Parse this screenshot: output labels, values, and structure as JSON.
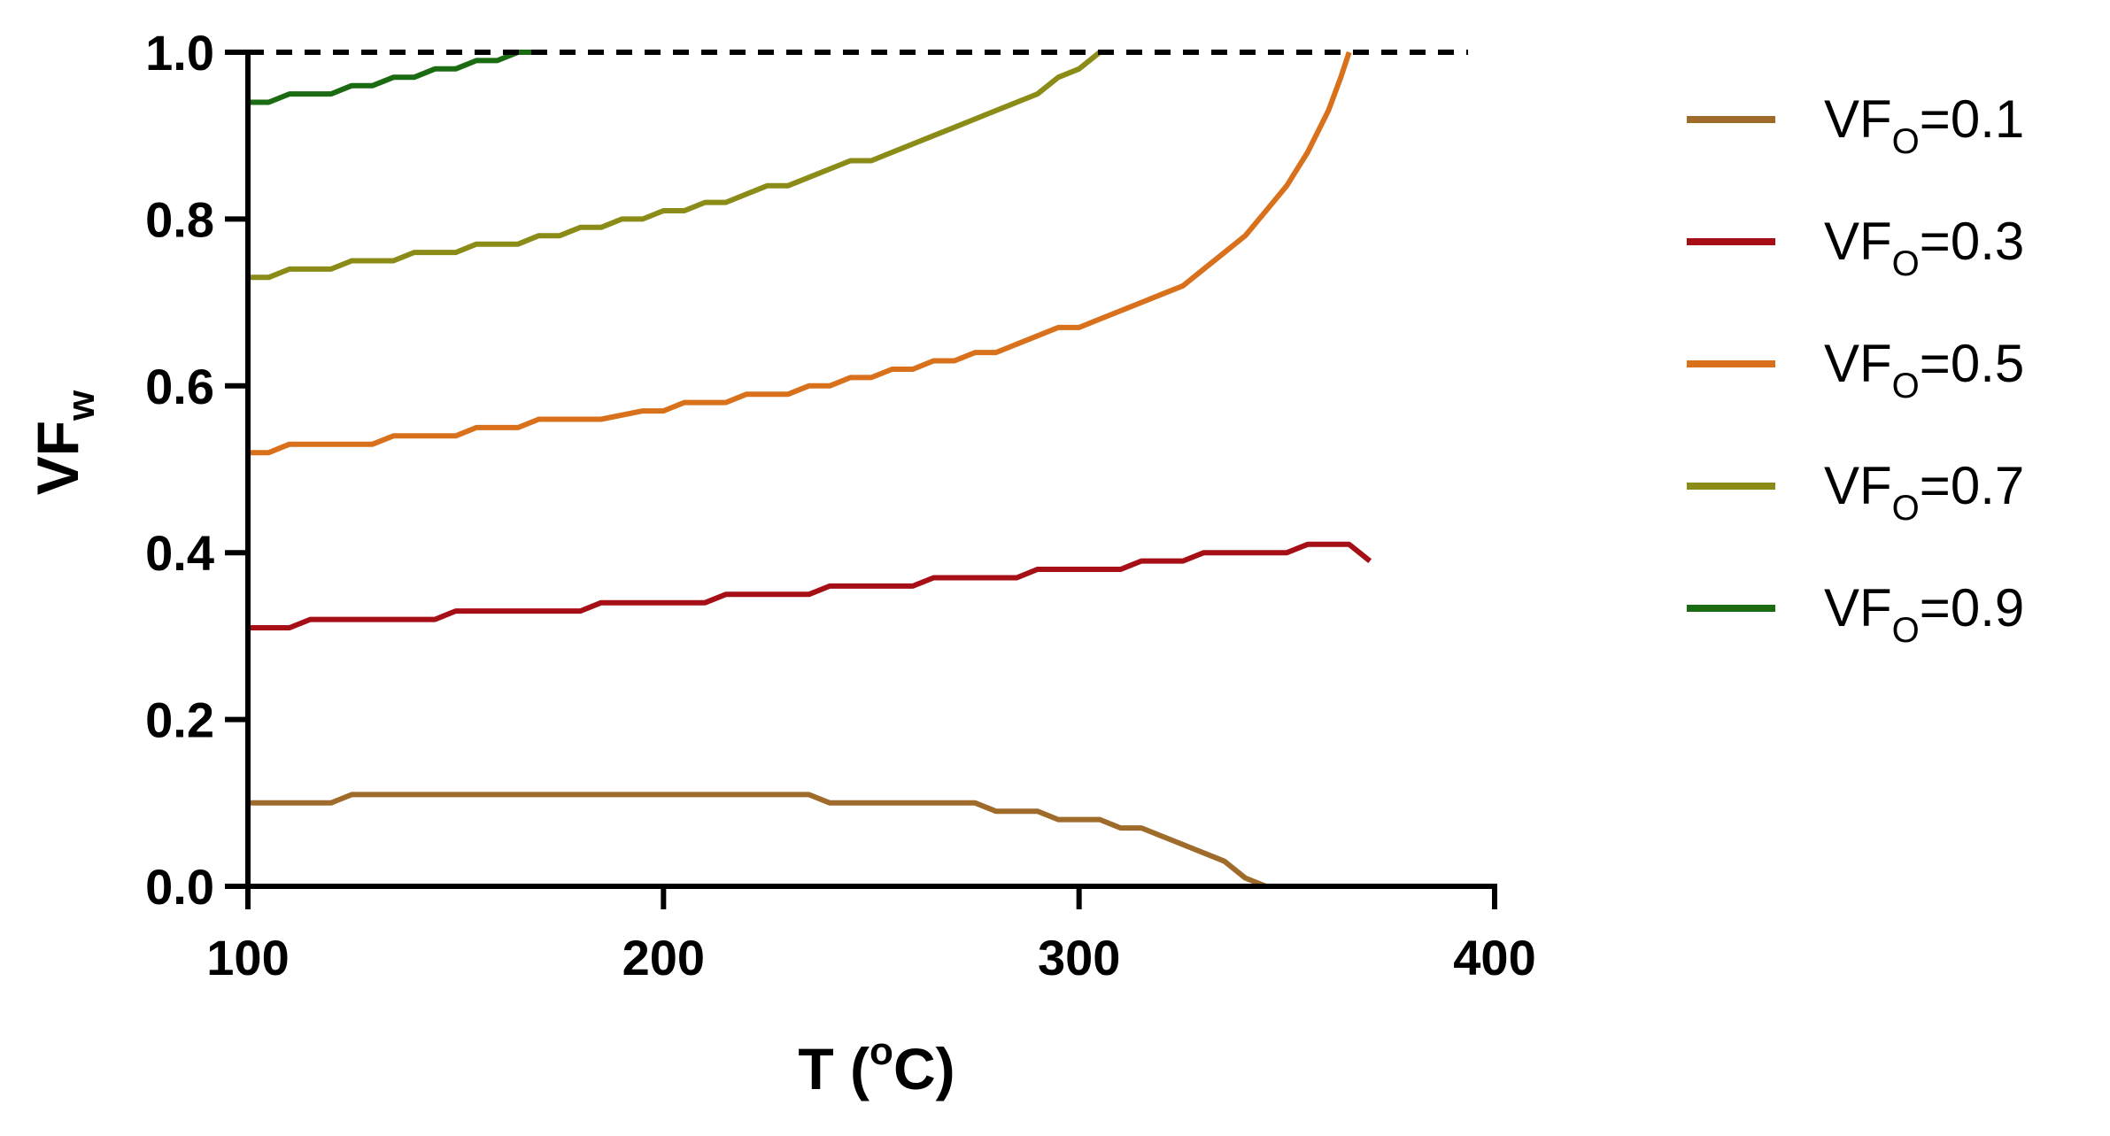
{
  "chart_data": {
    "type": "line",
    "title": "",
    "xlabel": "T (",
    "xlabel_sup": "o",
    "xlabel_tail": "C)",
    "ylabel": "VF",
    "ylabel_sub": "w",
    "xlim": [
      100,
      400
    ],
    "ylim": [
      0.0,
      1.0
    ],
    "xticks": [
      100,
      200,
      300,
      400
    ],
    "xtick_labels": [
      "100",
      "200",
      "300",
      "400"
    ],
    "yticks": [
      0.0,
      0.2,
      0.4,
      0.6,
      0.8,
      1.0
    ],
    "ytick_labels": [
      "0.0",
      "0.2",
      "0.4",
      "0.6",
      "0.8",
      "1.0"
    ],
    "grid": false,
    "legend_position": "right",
    "reference_line": {
      "y": 1.0,
      "style": "dashed",
      "color": "#000000"
    },
    "series": [
      {
        "name_prefix": "VF",
        "name_sub": "O",
        "name_suffix": "=0.1",
        "color": "#9E6B2A",
        "x": [
          100,
          105,
          110,
          115,
          120,
          125,
          135,
          145,
          155,
          165,
          175,
          185,
          195,
          205,
          215,
          225,
          235,
          240,
          245,
          255,
          265,
          275,
          280,
          285,
          290,
          295,
          300,
          305,
          310,
          315,
          320,
          325,
          330,
          335,
          340,
          345
        ],
        "y": [
          0.1,
          0.1,
          0.1,
          0.1,
          0.1,
          0.11,
          0.11,
          0.11,
          0.11,
          0.11,
          0.11,
          0.11,
          0.11,
          0.11,
          0.11,
          0.11,
          0.11,
          0.1,
          0.1,
          0.1,
          0.1,
          0.1,
          0.09,
          0.09,
          0.09,
          0.08,
          0.08,
          0.08,
          0.07,
          0.07,
          0.06,
          0.05,
          0.04,
          0.03,
          0.01,
          0.0
        ]
      },
      {
        "name_prefix": "VF",
        "name_sub": "O",
        "name_suffix": "=0.3",
        "color": "#A50F15",
        "x": [
          100,
          110,
          115,
          125,
          135,
          145,
          150,
          160,
          170,
          180,
          185,
          195,
          205,
          210,
          215,
          225,
          235,
          240,
          250,
          260,
          265,
          275,
          285,
          290,
          300,
          310,
          315,
          325,
          330,
          340,
          350,
          355,
          365,
          370
        ],
        "y": [
          0.31,
          0.31,
          0.32,
          0.32,
          0.32,
          0.32,
          0.33,
          0.33,
          0.33,
          0.33,
          0.34,
          0.34,
          0.34,
          0.34,
          0.35,
          0.35,
          0.35,
          0.36,
          0.36,
          0.36,
          0.37,
          0.37,
          0.37,
          0.38,
          0.38,
          0.38,
          0.39,
          0.39,
          0.4,
          0.4,
          0.4,
          0.41,
          0.41,
          0.39
        ]
      },
      {
        "name_prefix": "VF",
        "name_sub": "O",
        "name_suffix": "=0.5",
        "color": "#D9711C",
        "x": [
          100,
          105,
          110,
          120,
          130,
          135,
          145,
          150,
          155,
          165,
          170,
          180,
          185,
          195,
          200,
          205,
          215,
          220,
          230,
          235,
          240,
          245,
          250,
          255,
          260,
          265,
          270,
          275,
          280,
          285,
          290,
          295,
          300,
          305,
          310,
          315,
          320,
          325,
          330,
          335,
          340,
          345,
          350,
          355,
          360,
          363,
          365
        ],
        "y": [
          0.52,
          0.52,
          0.53,
          0.53,
          0.53,
          0.54,
          0.54,
          0.54,
          0.55,
          0.55,
          0.56,
          0.56,
          0.56,
          0.57,
          0.57,
          0.58,
          0.58,
          0.59,
          0.59,
          0.6,
          0.6,
          0.61,
          0.61,
          0.62,
          0.62,
          0.63,
          0.63,
          0.64,
          0.64,
          0.65,
          0.66,
          0.67,
          0.67,
          0.68,
          0.69,
          0.7,
          0.71,
          0.72,
          0.74,
          0.76,
          0.78,
          0.81,
          0.84,
          0.88,
          0.93,
          0.97,
          1.0
        ]
      },
      {
        "name_prefix": "VF",
        "name_sub": "O",
        "name_suffix": "=0.7",
        "color": "#8B8B17",
        "x": [
          100,
          105,
          110,
          115,
          120,
          125,
          130,
          135,
          140,
          145,
          150,
          155,
          160,
          165,
          170,
          175,
          180,
          185,
          190,
          195,
          200,
          205,
          210,
          215,
          220,
          225,
          230,
          235,
          240,
          245,
          250,
          255,
          260,
          265,
          270,
          275,
          280,
          285,
          290,
          295,
          300,
          305
        ],
        "y": [
          0.73,
          0.73,
          0.74,
          0.74,
          0.74,
          0.75,
          0.75,
          0.75,
          0.76,
          0.76,
          0.76,
          0.77,
          0.77,
          0.77,
          0.78,
          0.78,
          0.79,
          0.79,
          0.8,
          0.8,
          0.81,
          0.81,
          0.82,
          0.82,
          0.83,
          0.84,
          0.84,
          0.85,
          0.86,
          0.87,
          0.87,
          0.88,
          0.89,
          0.9,
          0.91,
          0.92,
          0.93,
          0.94,
          0.95,
          0.97,
          0.98,
          1.0
        ]
      },
      {
        "name_prefix": "VF",
        "name_sub": "O",
        "name_suffix": "=0.9",
        "color": "#1B6B12",
        "x": [
          100,
          105,
          110,
          115,
          120,
          125,
          130,
          135,
          140,
          145,
          150,
          155,
          160,
          165,
          170
        ],
        "y": [
          0.94,
          0.94,
          0.95,
          0.95,
          0.95,
          0.96,
          0.96,
          0.97,
          0.97,
          0.98,
          0.98,
          0.99,
          0.99,
          1.0,
          1.0
        ]
      }
    ]
  }
}
